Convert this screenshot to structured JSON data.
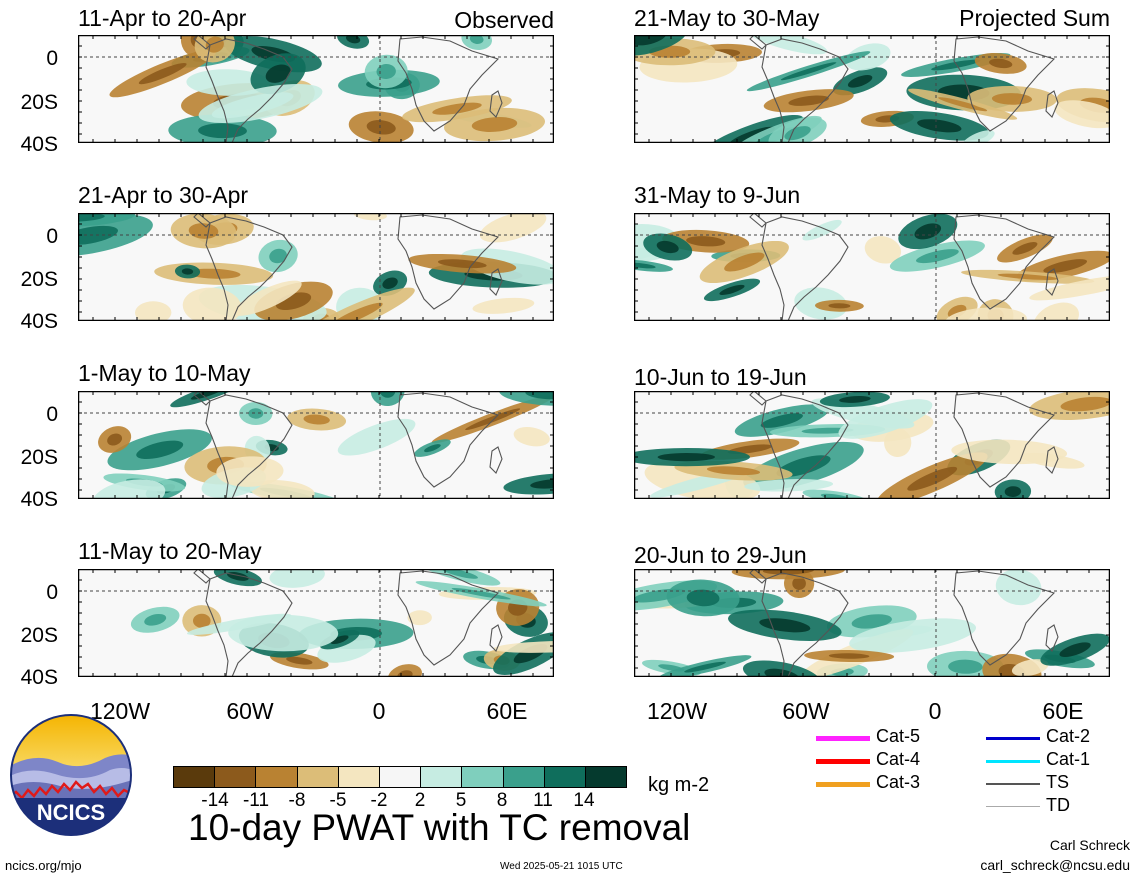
{
  "panels": [
    {
      "id": "p1",
      "title": "11-Apr to 20-Apr",
      "tag": "Observed"
    },
    {
      "id": "p2",
      "title": "21-Apr to 30-Apr",
      "tag": ""
    },
    {
      "id": "p3",
      "title": "1-May to 10-May",
      "tag": ""
    },
    {
      "id": "p4",
      "title": "11-May to 20-May",
      "tag": ""
    },
    {
      "id": "p5",
      "title": "21-May to 30-May",
      "tag": "Projected Sum"
    },
    {
      "id": "p6",
      "title": "31-May to 9-Jun",
      "tag": ""
    },
    {
      "id": "p7",
      "title": "10-Jun to 19-Jun",
      "tag": ""
    },
    {
      "id": "p8",
      "title": "20-Jun to 29-Jun",
      "tag": ""
    }
  ],
  "lat_labels": [
    "0",
    "20S",
    "40S"
  ],
  "lon_labels": [
    "120W",
    "60W",
    "0",
    "60E"
  ],
  "colorbar": {
    "colors": [
      "#5a3a0c",
      "#8c5a1c",
      "#b98232",
      "#dcbd78",
      "#f4e6c0",
      "#f6f6f6",
      "#c6ece2",
      "#7fcfbd",
      "#3aa08c",
      "#0f6e5c",
      "#053a2e"
    ],
    "labels": [
      "-14",
      "-11",
      "-8",
      "-5",
      "-2",
      "2",
      "5",
      "8",
      "11",
      "14"
    ],
    "units": "kg m-2"
  },
  "title": "10-day PWAT with TC removal",
  "logo_text": "NCICS",
  "footer": {
    "left": "ncics.org/mjo",
    "center": "Wed 2025-05-21 1015 UTC",
    "author": "Carl Schreck",
    "email": "carl_schreck@ncsu.edu"
  },
  "legend": [
    {
      "label": "Cat-5",
      "color": "#ff22ff"
    },
    {
      "label": "Cat-4",
      "color": "#ff0000"
    },
    {
      "label": "Cat-3",
      "color": "#f0a020"
    },
    {
      "label": "Cat-2",
      "color": "#0000cc"
    },
    {
      "label": "Cat-1",
      "color": "#00e5ff"
    },
    {
      "label": "TS",
      "color": "#555555"
    },
    {
      "label": "TD",
      "color": "#aaaaaa"
    }
  ]
}
